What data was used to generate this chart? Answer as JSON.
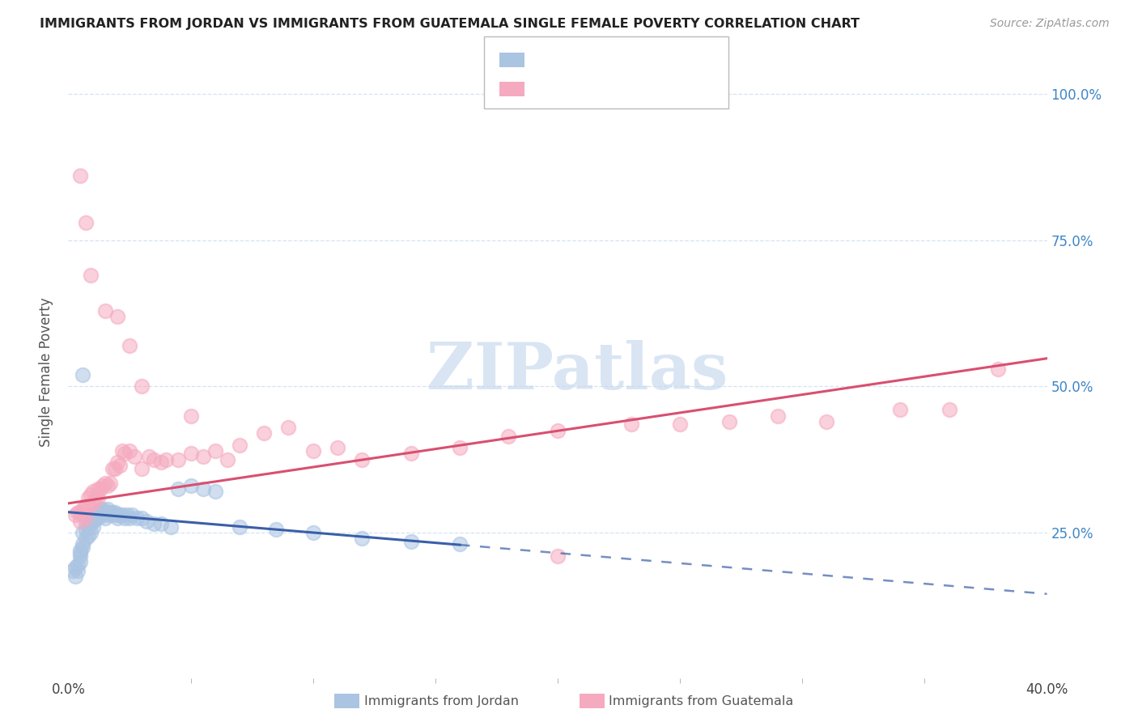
{
  "title": "IMMIGRANTS FROM JORDAN VS IMMIGRANTS FROM GUATEMALA SINGLE FEMALE POVERTY CORRELATION CHART",
  "source": "Source: ZipAtlas.com",
  "ylabel": "Single Female Poverty",
  "xlim": [
    0.0,
    0.4
  ],
  "ylim": [
    0.0,
    1.05
  ],
  "ytick_labels": [
    "25.0%",
    "50.0%",
    "75.0%",
    "100.0%"
  ],
  "ytick_values": [
    0.25,
    0.5,
    0.75,
    1.0
  ],
  "jordan_color": "#aac4e2",
  "guatemala_color": "#f5aabf",
  "jordan_line_color": "#3a5fa8",
  "guatemala_line_color": "#d94f70",
  "watermark_text": "ZIPatlas",
  "jordan_x": [
    0.002,
    0.003,
    0.003,
    0.004,
    0.004,
    0.005,
    0.005,
    0.005,
    0.005,
    0.006,
    0.006,
    0.006,
    0.007,
    0.007,
    0.007,
    0.008,
    0.008,
    0.008,
    0.009,
    0.009,
    0.009,
    0.01,
    0.01,
    0.01,
    0.011,
    0.011,
    0.012,
    0.012,
    0.013,
    0.013,
    0.014,
    0.014,
    0.015,
    0.015,
    0.016,
    0.016,
    0.017,
    0.018,
    0.018,
    0.019,
    0.02,
    0.02,
    0.021,
    0.022,
    0.023,
    0.024,
    0.025,
    0.026,
    0.028,
    0.03,
    0.032,
    0.035,
    0.038,
    0.042,
    0.045,
    0.05,
    0.055,
    0.06,
    0.07,
    0.085,
    0.1,
    0.12,
    0.14,
    0.16,
    0.006
  ],
  "jordan_y": [
    0.185,
    0.19,
    0.175,
    0.195,
    0.185,
    0.22,
    0.21,
    0.2,
    0.215,
    0.23,
    0.25,
    0.225,
    0.265,
    0.255,
    0.24,
    0.27,
    0.26,
    0.245,
    0.275,
    0.265,
    0.25,
    0.28,
    0.27,
    0.26,
    0.285,
    0.275,
    0.285,
    0.275,
    0.29,
    0.28,
    0.29,
    0.285,
    0.285,
    0.275,
    0.29,
    0.28,
    0.285,
    0.285,
    0.28,
    0.285,
    0.28,
    0.275,
    0.28,
    0.28,
    0.275,
    0.28,
    0.275,
    0.28,
    0.275,
    0.275,
    0.27,
    0.265,
    0.265,
    0.26,
    0.325,
    0.33,
    0.325,
    0.32,
    0.26,
    0.255,
    0.25,
    0.24,
    0.235,
    0.23,
    0.52
  ],
  "guatemala_x": [
    0.003,
    0.004,
    0.005,
    0.005,
    0.006,
    0.006,
    0.007,
    0.007,
    0.008,
    0.008,
    0.009,
    0.01,
    0.01,
    0.011,
    0.012,
    0.012,
    0.013,
    0.014,
    0.015,
    0.016,
    0.017,
    0.018,
    0.019,
    0.02,
    0.021,
    0.022,
    0.023,
    0.025,
    0.027,
    0.03,
    0.033,
    0.035,
    0.038,
    0.04,
    0.045,
    0.05,
    0.055,
    0.06,
    0.065,
    0.07,
    0.08,
    0.09,
    0.1,
    0.11,
    0.12,
    0.14,
    0.16,
    0.18,
    0.2,
    0.23,
    0.25,
    0.27,
    0.29,
    0.31,
    0.34,
    0.36,
    0.38,
    0.005,
    0.007,
    0.009,
    0.015,
    0.02,
    0.025,
    0.03,
    0.05,
    0.2
  ],
  "guatemala_y": [
    0.28,
    0.285,
    0.285,
    0.27,
    0.29,
    0.28,
    0.295,
    0.275,
    0.31,
    0.295,
    0.315,
    0.32,
    0.3,
    0.31,
    0.325,
    0.31,
    0.325,
    0.33,
    0.335,
    0.33,
    0.335,
    0.36,
    0.36,
    0.37,
    0.365,
    0.39,
    0.385,
    0.39,
    0.38,
    0.36,
    0.38,
    0.375,
    0.37,
    0.375,
    0.375,
    0.385,
    0.38,
    0.39,
    0.375,
    0.4,
    0.42,
    0.43,
    0.39,
    0.395,
    0.375,
    0.385,
    0.395,
    0.415,
    0.425,
    0.435,
    0.435,
    0.44,
    0.45,
    0.44,
    0.46,
    0.46,
    0.53,
    0.86,
    0.78,
    0.69,
    0.63,
    0.62,
    0.57,
    0.5,
    0.45,
    0.21
  ]
}
